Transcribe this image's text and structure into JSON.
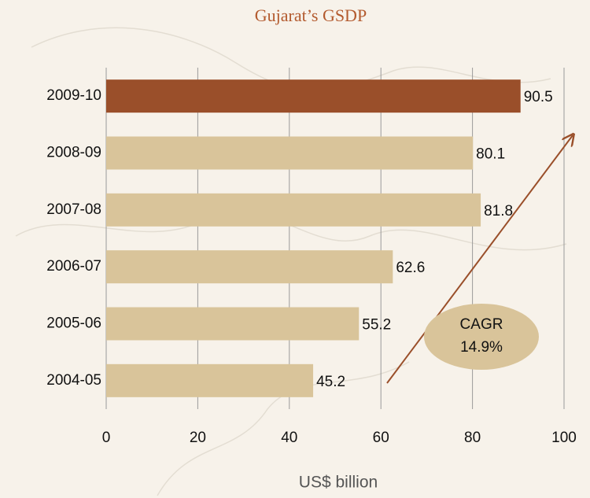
{
  "chart_data": {
    "type": "bar",
    "orientation": "horizontal",
    "title": "Gujarat’s GSDP",
    "x_label": "US$ billion",
    "categories": [
      "2009-10",
      "2008-09",
      "2007-08",
      "2006-07",
      "2005-06",
      "2004-05"
    ],
    "values": [
      90.5,
      80.1,
      81.8,
      62.6,
      55.2,
      45.2
    ],
    "colors": [
      "#9a4f2a",
      "#d9c49a",
      "#d9c49a",
      "#d9c49a",
      "#d9c49a",
      "#d9c49a"
    ],
    "xlim": [
      0,
      100
    ],
    "xticks": [
      0,
      20,
      40,
      60,
      80,
      100
    ],
    "grid": true,
    "annotation": [
      "CAGR",
      "14.9%"
    ]
  }
}
